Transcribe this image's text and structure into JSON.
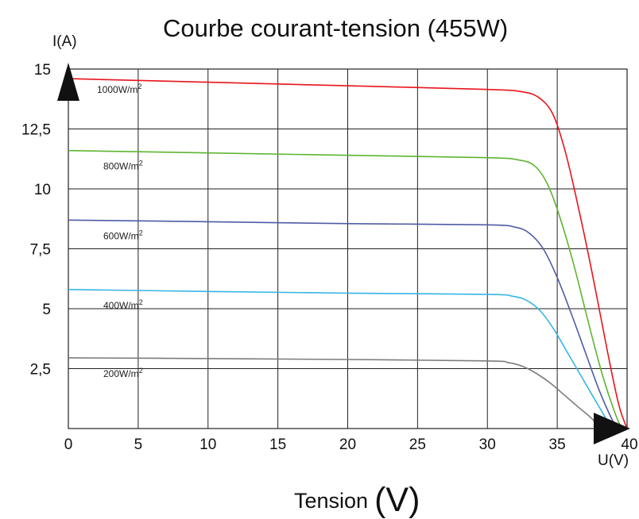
{
  "chart_data": {
    "type": "line",
    "title": "Courbe courant-tension (455W)",
    "xlabel": "Tension",
    "xlabel_unit": "(V)",
    "ylabel": "I(A)",
    "x_unit_label": "U(V)",
    "xlim": [
      0,
      40
    ],
    "ylim": [
      0,
      15
    ],
    "grid": true,
    "x_ticks": [
      "0",
      "5",
      "10",
      "15",
      "20",
      "25",
      "30",
      "35",
      "40"
    ],
    "y_ticks": [
      "15",
      "12,5",
      "10",
      "7,5",
      "5",
      "2,5"
    ],
    "series": [
      {
        "name": "1000W/m",
        "name_sup": "2",
        "color": "#e8141b",
        "points": [
          [
            0,
            14.6
          ],
          [
            10,
            14.45
          ],
          [
            20,
            14.3
          ],
          [
            30,
            14.15
          ],
          [
            32.5,
            14.05
          ],
          [
            33.7,
            13.8
          ],
          [
            34.7,
            13.1
          ],
          [
            35.6,
            11.5
          ],
          [
            36.6,
            9.0
          ],
          [
            37.6,
            6.2
          ],
          [
            38.6,
            3.2
          ],
          [
            39.4,
            1.0
          ],
          [
            40,
            0
          ]
        ]
      },
      {
        "name": "800W/m",
        "name_sup": "2",
        "color": "#5db531",
        "points": [
          [
            0,
            11.6
          ],
          [
            10,
            11.5
          ],
          [
            20,
            11.4
          ],
          [
            30,
            11.3
          ],
          [
            32.3,
            11.2
          ],
          [
            33.4,
            10.95
          ],
          [
            34.3,
            10.2
          ],
          [
            35.2,
            8.8
          ],
          [
            36.2,
            6.8
          ],
          [
            37.2,
            4.5
          ],
          [
            38.2,
            2.3
          ],
          [
            39.1,
            0.7
          ],
          [
            39.6,
            0
          ]
        ]
      },
      {
        "name": "600W/m",
        "name_sup": "2",
        "color": "#4e5ba6",
        "points": [
          [
            0,
            8.7
          ],
          [
            10,
            8.63
          ],
          [
            20,
            8.55
          ],
          [
            30,
            8.5
          ],
          [
            32,
            8.4
          ],
          [
            33,
            8.15
          ],
          [
            34,
            7.5
          ],
          [
            35,
            6.3
          ],
          [
            36,
            4.8
          ],
          [
            37,
            3.2
          ],
          [
            38,
            1.6
          ],
          [
            38.9,
            0.4
          ],
          [
            39.3,
            0
          ]
        ]
      },
      {
        "name": "400W/m",
        "name_sup": "2",
        "color": "#35b5e5",
        "points": [
          [
            0,
            5.8
          ],
          [
            10,
            5.72
          ],
          [
            20,
            5.65
          ],
          [
            30,
            5.6
          ],
          [
            31.8,
            5.52
          ],
          [
            32.8,
            5.35
          ],
          [
            33.8,
            4.9
          ],
          [
            34.8,
            4.1
          ],
          [
            35.8,
            3.1
          ],
          [
            36.8,
            2.1
          ],
          [
            37.8,
            1.1
          ],
          [
            38.6,
            0.3
          ],
          [
            38.9,
            0
          ]
        ]
      },
      {
        "name": "200W/m",
        "name_sup": "2",
        "color": "#7d7a7d",
        "points": [
          [
            0,
            2.95
          ],
          [
            10,
            2.92
          ],
          [
            20,
            2.88
          ],
          [
            30,
            2.82
          ],
          [
            31.5,
            2.75
          ],
          [
            32.5,
            2.6
          ],
          [
            33.5,
            2.3
          ],
          [
            34.5,
            1.9
          ],
          [
            35.5,
            1.4
          ],
          [
            36.5,
            0.9
          ],
          [
            37.5,
            0.4
          ],
          [
            38,
            0
          ]
        ]
      }
    ]
  }
}
